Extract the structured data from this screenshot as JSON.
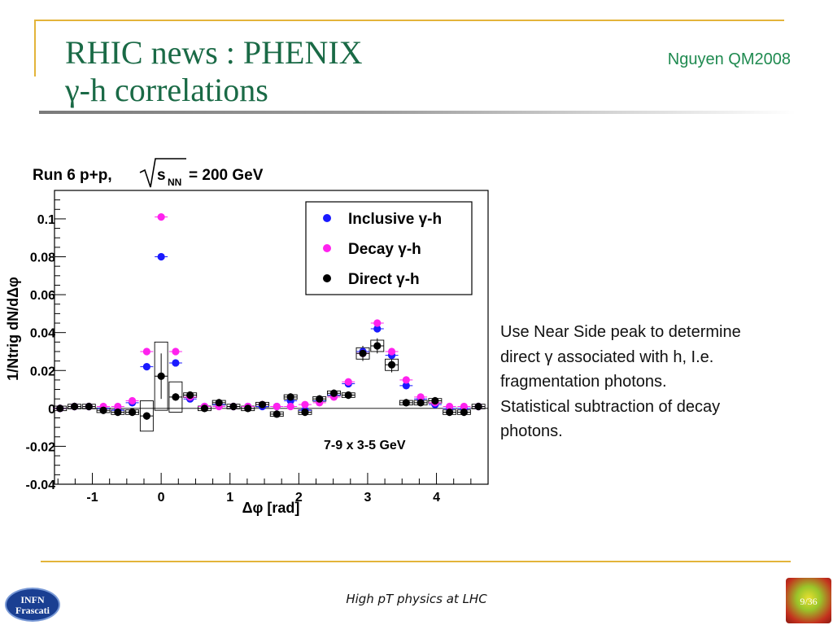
{
  "slide": {
    "title_line1": "RHIC news : PHENIX",
    "title_line2": "γ-h correlations",
    "author": "Nguyen QM2008",
    "body_lines": [
      "Use Near Side peak to determine",
      "direct γ associated with h, I.e.",
      "fragmentation photons.",
      "Statistical subtraction of decay",
      "photons."
    ],
    "footer": "High pT physics at LHC",
    "page_number": "9/36",
    "logo_lines": [
      "INFN",
      "Frascati"
    ]
  },
  "chart_data": {
    "type": "scatter",
    "title": "Run 6 p+p,",
    "title_energy": "= 200 GeV",
    "title_sqrt": "s",
    "title_sub": "NN",
    "xlabel": "Δφ [rad]",
    "ylabel": "1/Ntrig dN/dΔφ",
    "annotation": "7-9 x 3-5 GeV",
    "xlim": [
      -1.55,
      4.75
    ],
    "ylim": [
      -0.04,
      0.115
    ],
    "xticks": [
      -1,
      0,
      1,
      2,
      3,
      4
    ],
    "yticks": [
      -0.04,
      -0.02,
      0,
      0.02,
      0.04,
      0.06,
      0.08,
      0.1
    ],
    "ytick_labels": [
      "-0.04",
      "-0.02",
      "0",
      "0.02",
      "0.04",
      "0.06",
      "0.08",
      "0.1"
    ],
    "legend_position": "top-right",
    "x": [
      -1.47,
      -1.26,
      -1.05,
      -0.84,
      -0.63,
      -0.42,
      -0.21,
      0.0,
      0.21,
      0.42,
      0.63,
      0.84,
      1.05,
      1.26,
      1.47,
      1.68,
      1.88,
      2.09,
      2.3,
      2.51,
      2.72,
      2.93,
      3.14,
      3.35,
      3.56,
      3.77,
      3.98,
      4.19,
      4.4,
      4.61
    ],
    "series": [
      {
        "name": "Inclusive γ-h",
        "color": "#1a1aff",
        "values": [
          0.0,
          0.001,
          0.001,
          0.0,
          -0.001,
          0.003,
          0.022,
          0.08,
          0.024,
          0.005,
          0.001,
          0.002,
          0.001,
          0.001,
          0.001,
          0.001,
          0.004,
          -0.001,
          0.004,
          0.007,
          0.013,
          0.03,
          0.042,
          0.028,
          0.012,
          0.005,
          0.002,
          0.0,
          0.0,
          0.001
        ]
      },
      {
        "name": "Decay γ-h",
        "color": "#ff22ee",
        "values": [
          0.0,
          0.001,
          0.001,
          0.001,
          0.001,
          0.004,
          0.03,
          0.101,
          0.03,
          0.006,
          0.001,
          0.001,
          0.001,
          0.001,
          0.002,
          0.001,
          0.001,
          0.002,
          0.003,
          0.006,
          0.014,
          0.029,
          0.045,
          0.03,
          0.015,
          0.006,
          0.003,
          0.001,
          0.001,
          0.001
        ]
      },
      {
        "name": "Direct γ-h",
        "color": "#000000",
        "values": [
          0.0,
          0.001,
          0.001,
          -0.001,
          -0.002,
          -0.002,
          -0.004,
          0.017,
          0.006,
          0.007,
          0.0,
          0.003,
          0.001,
          0.0,
          0.002,
          -0.003,
          0.006,
          -0.002,
          0.005,
          0.008,
          0.007,
          0.029,
          0.033,
          0.023,
          0.003,
          0.003,
          0.004,
          -0.002,
          -0.002,
          0.001
        ]
      }
    ]
  }
}
